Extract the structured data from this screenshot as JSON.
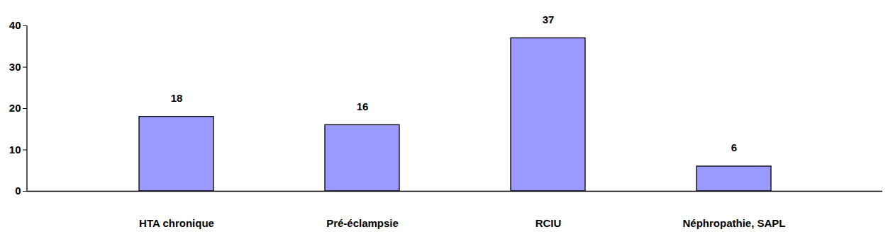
{
  "chart_data": {
    "type": "bar",
    "categories": [
      "HTA chronique",
      "Pré-éclampsie",
      "RCIU",
      "Néphropathie, SAPL"
    ],
    "values": [
      18,
      16,
      37,
      6
    ],
    "color": "#9999ff",
    "ylim": [
      0,
      40
    ],
    "yticks": [
      0,
      10,
      20,
      30,
      40
    ],
    "grid": false,
    "data_labels": true
  }
}
